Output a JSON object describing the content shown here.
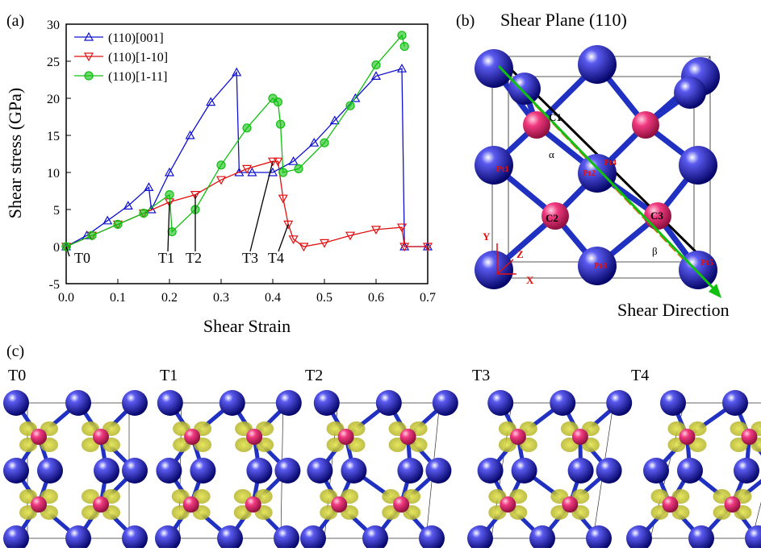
{
  "chart_data": {
    "type": "line",
    "panel": "(a)",
    "x_label": "Shear Strain",
    "y_label": "Shear stress (GPa)",
    "xlim": [
      0,
      0.7
    ],
    "xticks": [
      {
        "value": 0,
        "label": "0.0"
      },
      0.1,
      0.2,
      0.3,
      0.4,
      0.5,
      0.6,
      0.7
    ],
    "ylim": [
      -5,
      30
    ],
    "yticks": [
      -5,
      0,
      5,
      10,
      15,
      20,
      25,
      30
    ],
    "legend": "upper left",
    "series": [
      {
        "name": "(110)[001]",
        "color": "#1010d0",
        "marker": "triangle-up",
        "x": [
          0,
          0.04,
          0.08,
          0.12,
          0.16,
          0.165,
          0.2,
          0.24,
          0.28,
          0.33,
          0.335,
          0.36,
          0.4,
          0.44,
          0.48,
          0.52,
          0.56,
          0.6,
          0.65,
          0.655,
          0.7
        ],
        "values": [
          0,
          1.5,
          3.5,
          5.5,
          8,
          5,
          10,
          15,
          19.5,
          23.5,
          10,
          10,
          10,
          11.5,
          14,
          17,
          20,
          23,
          24,
          0,
          0
        ]
      },
      {
        "name": "(110)[1-10]",
        "color": "#e01010",
        "marker": "triangle-down",
        "x": [
          0,
          0.05,
          0.1,
          0.15,
          0.2,
          0.25,
          0.3,
          0.35,
          0.4,
          0.41,
          0.42,
          0.43,
          0.44,
          0.46,
          0.5,
          0.55,
          0.6,
          0.65,
          0.655,
          0.7
        ],
        "values": [
          0,
          1.5,
          3,
          4.5,
          6,
          7,
          9,
          10.5,
          11.5,
          11.5,
          6.5,
          3,
          1,
          0,
          0.5,
          1.5,
          2.3,
          2.6,
          0,
          0
        ]
      },
      {
        "name": "(110)[1-11]",
        "color": "#10c010",
        "marker": "half-circle",
        "x": [
          0,
          0.05,
          0.1,
          0.15,
          0.2,
          0.205,
          0.25,
          0.3,
          0.35,
          0.4,
          0.41,
          0.415,
          0.42,
          0.45,
          0.5,
          0.55,
          0.6,
          0.65,
          0.655
        ],
        "values": [
          0,
          1.5,
          3,
          4.5,
          7,
          2,
          5,
          11,
          16,
          20,
          19.5,
          16.5,
          10,
          10.5,
          14,
          19,
          24.5,
          28.5,
          27
        ]
      }
    ],
    "annotations": [
      "T0",
      "T1",
      "T2",
      "T3",
      "T4"
    ]
  },
  "panel_b": {
    "label": "(b)",
    "title": "Shear Plane (110)",
    "atoms": [
      "C1",
      "C2",
      "C3",
      "Pt1",
      "Pt2",
      "Pt3",
      "Pt4",
      "Pt5"
    ],
    "angles": [
      "α",
      "β"
    ],
    "axes": [
      "X",
      "Y",
      "Z"
    ],
    "direction": "Shear Direction"
  },
  "panel_c": {
    "label": "(c)",
    "states": [
      "T0",
      "T1",
      "T2",
      "T3",
      "T4"
    ]
  }
}
